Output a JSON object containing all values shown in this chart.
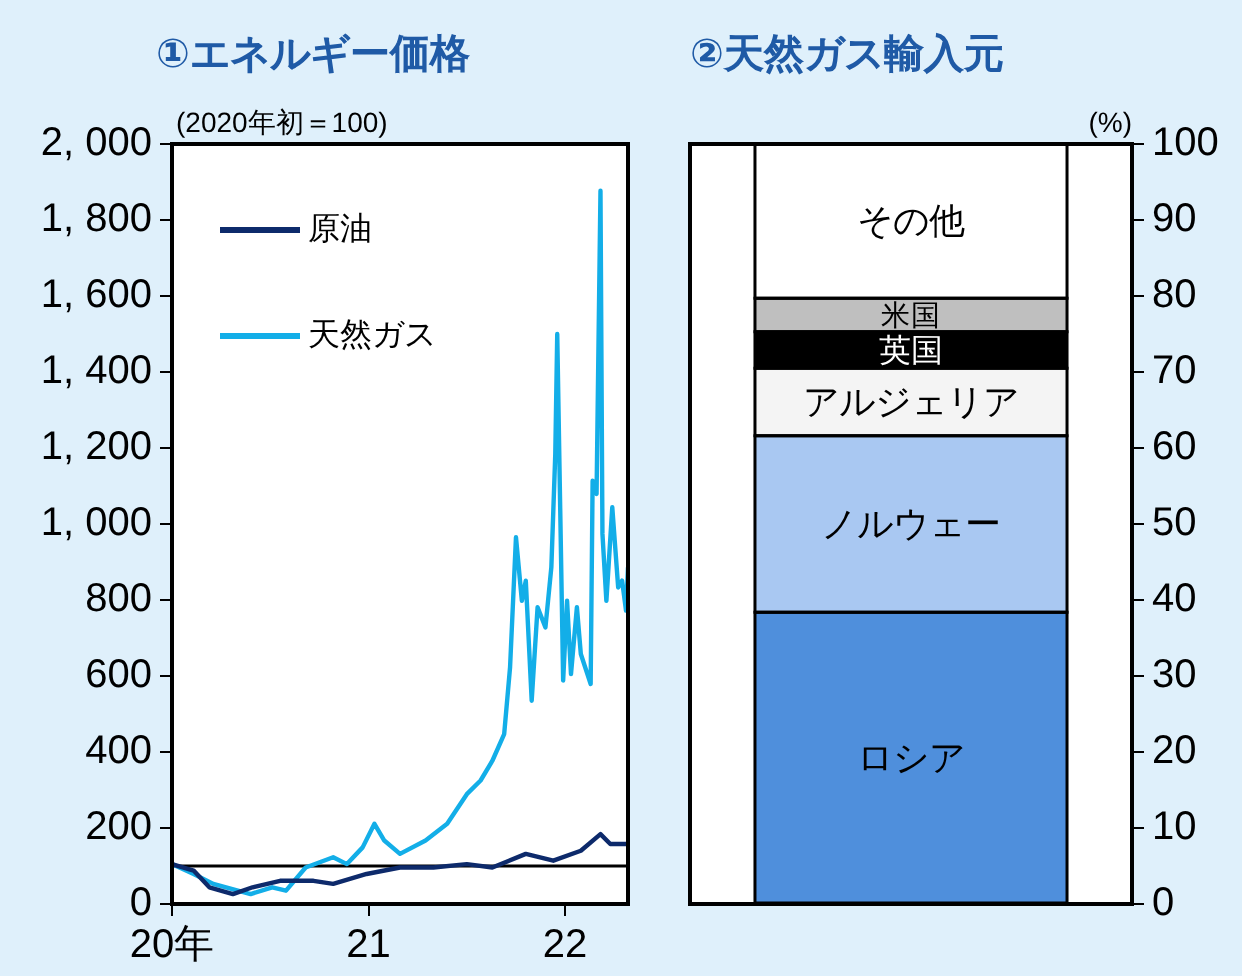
{
  "chart_data": [
    {
      "type": "line",
      "title": "①エネルギー価格",
      "ylabel": "(2020年初＝100)",
      "legend": "top left",
      "marker": "none",
      "line_style": "solid",
      "series": [
        {
          "name": "原油",
          "color": "#0d2a6b",
          "x": [
            20.0,
            20.11,
            20.19,
            20.31,
            20.41,
            20.55,
            20.72,
            20.82,
            20.99,
            21.16,
            21.33,
            21.5,
            21.63,
            21.8,
            21.94,
            22.08,
            22.18,
            22.23,
            22.32
          ],
          "values": [
            105,
            88,
            44,
            26,
            44,
            61,
            61,
            53,
            79,
            96,
            96,
            105,
            96,
            132,
            114,
            140,
            184,
            158,
            158
          ]
        },
        {
          "name": "天然ガス",
          "color": "#13aee8",
          "x": [
            20.0,
            20.11,
            20.21,
            20.4,
            20.51,
            20.58,
            20.68,
            20.82,
            20.89,
            20.97,
            21.03,
            21.08,
            21.16,
            21.29,
            21.4,
            21.5,
            21.57,
            21.63,
            21.69,
            21.72,
            21.75,
            21.78,
            21.8,
            21.83,
            21.86,
            21.9,
            21.93,
            21.95,
            21.96,
            21.99,
            22.01,
            22.03,
            22.06,
            22.08,
            22.13,
            22.14,
            22.16,
            22.18,
            22.19,
            22.21,
            22.24,
            22.27,
            22.29,
            22.31,
            22.32
          ],
          "values": [
            105,
            79,
            53,
            26,
            44,
            35,
            96,
            123,
            105,
            149,
            211,
            167,
            132,
            167,
            211,
            289,
            325,
            377,
            447,
            623,
            965,
            798,
            851,
            535,
            781,
            728,
            886,
            1184,
            1500,
            588,
            798,
            605,
            781,
            658,
            579,
            1114,
            1079,
            1877,
            974,
            798,
            1044,
            833,
            851,
            772,
            886
          ]
        }
      ],
      "xlim": [
        20,
        22.32
      ],
      "xticks": [
        {
          "value": 20,
          "label": "20年"
        },
        21,
        22
      ],
      "ylim": [
        0,
        2000
      ],
      "yticks": [
        0,
        200,
        400,
        600,
        800,
        {
          "value": 1000,
          "label": "1, 000"
        },
        {
          "value": 1200,
          "label": "1, 200"
        },
        {
          "value": 1400,
          "label": "1, 400"
        },
        {
          "value": 1600,
          "label": "1, 600"
        },
        {
          "value": 1800,
          "label": "1, 800"
        },
        {
          "value": 2000,
          "label": "2, 000"
        }
      ],
      "ref_lines": [
        {
          "axis": "y",
          "value": 100,
          "color": "#000000"
        }
      ]
    },
    {
      "type": "bar",
      "title": "②天然ガス輸入元",
      "ylabel": "(%)",
      "categories": [
        null
      ],
      "stacked": true,
      "series": [
        {
          "name": "ロシア",
          "color": "#4f8fdc",
          "values": [
            38.4
          ]
        },
        {
          "name": "ノルウェー",
          "color": "#a9c8f2",
          "values": [
            23.2
          ]
        },
        {
          "name": "アルジェリア",
          "color": "#f4f4f4",
          "values": [
            8.9
          ]
        },
        {
          "name": "英国",
          "color": "#000000",
          "values": [
            4.8
          ]
        },
        {
          "name": "米国",
          "color": "#bfbfbf",
          "values": [
            4.4
          ]
        },
        {
          "name": "その他",
          "color": "#ffffff",
          "values": [
            20.3
          ]
        }
      ],
      "ylim": [
        0,
        100
      ],
      "yticks": [
        0,
        10,
        20,
        30,
        40,
        50,
        60,
        70,
        80,
        90,
        100
      ]
    }
  ]
}
